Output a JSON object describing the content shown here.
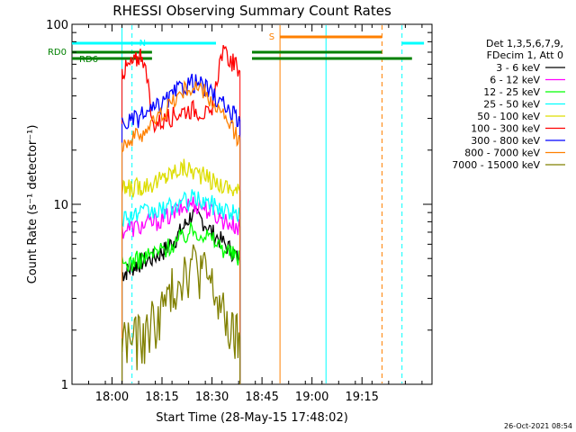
{
  "chart_data": {
    "type": "line",
    "title": "RHESSI Observing Summary Count Rates",
    "xlabel": "Start Time (28-May-15 17:48:02)",
    "ylabel": "Count Rate (s⁻¹ detector⁻¹)",
    "yscale": "log",
    "ylim": [
      1,
      100
    ],
    "xlim_minutes": [
      -12,
      36
    ],
    "x_ticks": [
      "18:00",
      "18:15",
      "18:30",
      "18:45",
      "19:00",
      "19:15"
    ],
    "y_ticks": [
      "1",
      "10",
      "100"
    ],
    "grid": false,
    "legend_position": "right",
    "legend_header": [
      "Det 1,3,5,6,7,9,",
      "FDecim 1, Att 0"
    ],
    "series": [
      {
        "name": "3 - 6 keV",
        "color": "#000000",
        "x": [
          18.05,
          18.08,
          18.12,
          18.15,
          18.2,
          18.25,
          18.28,
          18.32,
          18.36,
          18.4,
          18.45,
          18.5,
          18.55,
          18.6,
          18.64
        ],
        "values": [
          4.1,
          4.3,
          4.6,
          4.8,
          5.0,
          5.4,
          5.8,
          6.5,
          7.5,
          8.8,
          8.2,
          7.0,
          6.2,
          5.5,
          4.8
        ]
      },
      {
        "name": "6 - 12 keV",
        "color": "#ff00ff",
        "x": [
          18.05,
          18.1,
          18.15,
          18.2,
          18.25,
          18.3,
          18.35,
          18.4,
          18.45,
          18.5,
          18.55,
          18.6,
          18.64
        ],
        "values": [
          7.2,
          7.4,
          7.6,
          7.9,
          8.3,
          8.8,
          9.5,
          10.2,
          9.8,
          9.0,
          8.3,
          7.8,
          7.4
        ]
      },
      {
        "name": "12 - 25 keV",
        "color": "#00ff00",
        "x": [
          18.05,
          18.1,
          18.15,
          18.2,
          18.25,
          18.3,
          18.35,
          18.4,
          18.45,
          18.5,
          18.55,
          18.6,
          18.64
        ],
        "values": [
          4.6,
          4.8,
          5.0,
          5.3,
          5.6,
          6.0,
          6.5,
          7.2,
          7.0,
          6.4,
          5.8,
          5.3,
          5.0
        ]
      },
      {
        "name": "25 - 50 keV",
        "color": "#00ffff",
        "x": [
          18.05,
          18.1,
          18.15,
          18.2,
          18.25,
          18.3,
          18.35,
          18.4,
          18.45,
          18.5,
          18.55,
          18.6,
          18.64
        ],
        "values": [
          8.5,
          8.7,
          8.9,
          9.0,
          9.3,
          9.7,
          10.2,
          10.8,
          10.5,
          10.0,
          9.5,
          9.0,
          8.8
        ]
      },
      {
        "name": "50 - 100 keV",
        "color": "#dddd00",
        "x": [
          18.05,
          18.08,
          18.12,
          18.15,
          18.2,
          18.25,
          18.28,
          18.32,
          18.36,
          18.4,
          18.45,
          18.5,
          18.55,
          18.6,
          18.64
        ],
        "values": [
          12.0,
          12.2,
          12.5,
          12.8,
          13.2,
          13.8,
          14.5,
          15.5,
          16.0,
          15.5,
          14.5,
          13.5,
          12.8,
          12.2,
          11.8
        ]
      },
      {
        "name": "100 - 300 keV",
        "color": "#ff0000",
        "x": [
          18.05,
          18.08,
          18.12,
          18.15,
          18.2,
          18.25,
          18.3,
          18.35,
          18.4,
          18.45,
          18.5,
          18.55,
          18.6,
          18.64
        ],
        "values": [
          55,
          58,
          63,
          70,
          28,
          29,
          31,
          33,
          34,
          33,
          30,
          70,
          62,
          55
        ]
      },
      {
        "name": "300 - 800 keV",
        "color": "#0000ff",
        "x": [
          18.05,
          18.1,
          18.15,
          18.2,
          18.25,
          18.3,
          18.35,
          18.4,
          18.45,
          18.5,
          18.55,
          18.6,
          18.64
        ],
        "values": [
          28,
          29,
          31,
          33,
          36,
          40,
          45,
          48,
          46,
          41,
          36,
          32,
          29
        ]
      },
      {
        "name": "800 - 7000 keV",
        "color": "#ff8000",
        "x": [
          18.05,
          18.1,
          18.15,
          18.2,
          18.25,
          18.3,
          18.35,
          18.4,
          18.45,
          18.5,
          18.55,
          18.6,
          18.64
        ],
        "values": [
          22,
          23,
          25,
          28,
          32,
          37,
          42,
          45,
          43,
          37,
          31,
          26,
          23
        ]
      },
      {
        "name": "7000 - 15000 keV",
        "color": "#808000",
        "x": [
          18.05,
          18.1,
          18.15,
          18.2,
          18.25,
          18.3,
          18.35,
          18.4,
          18.45,
          18.5,
          18.55,
          18.6,
          18.64
        ],
        "values": [
          1.8,
          1.8,
          1.8,
          2.2,
          2.6,
          3.3,
          4.3,
          4.8,
          4.4,
          3.5,
          2.5,
          1.9,
          1.8
        ]
      }
    ],
    "flag_bars": [
      {
        "label": "N",
        "color": "#00ffff",
        "segments": [
          [
            -12,
            18.52
          ],
          [
            19.45,
            19.56
          ]
        ]
      },
      {
        "label": "S",
        "color": "#ff8000",
        "segments": [
          [
            18.84,
            19.35
          ]
        ]
      },
      {
        "label": "RD0",
        "color": "#008000",
        "segments": [
          [
            -12,
            18.2
          ],
          [
            18.7,
            19.35
          ]
        ]
      },
      {
        "label": "RD6",
        "color": "#008000",
        "segments": [
          [
            -12,
            18.2
          ],
          [
            18.7,
            19.35
          ],
          [
            19.35,
            19.5
          ]
        ]
      }
    ],
    "vertical_markers": [
      {
        "x": 18.05,
        "color": "#00ffff",
        "style": "solid"
      },
      {
        "x": 18.1,
        "color": "#00ffff",
        "style": "dashed"
      },
      {
        "x": 18.84,
        "color": "#ff8000",
        "style": "solid"
      },
      {
        "x": 19.07,
        "color": "#00ffff",
        "style": "solid"
      },
      {
        "x": 19.35,
        "color": "#ff8000",
        "style": "dashed"
      },
      {
        "x": 19.45,
        "color": "#00ffff",
        "style": "dashed"
      }
    ],
    "timestamp": "26-Oct-2021 08:54"
  }
}
